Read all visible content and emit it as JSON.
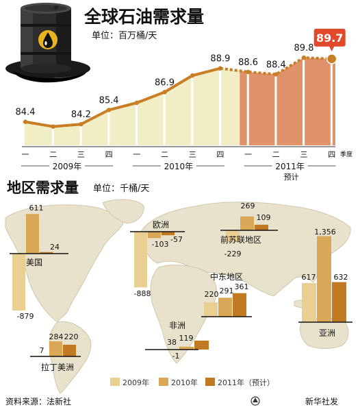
{
  "main_chart": {
    "title": "全球石油需求量",
    "unit": "单位：百万桶/天",
    "quarter_suffix": "季度",
    "years": [
      "2009年",
      "2010年",
      "2011年"
    ],
    "forecast_note": "预计"
  },
  "regional": {
    "title": "地区需求量",
    "unit": "单位：千桶/天"
  },
  "legend": [
    "2009年",
    "2010年",
    "2011年（预计）"
  ],
  "footer": {
    "source": "资料来源：法新社",
    "credit": "新华社发"
  },
  "colors": {
    "c2009": "#e9cf92",
    "c2010": "#d9a756",
    "c2011": "#c17a22",
    "line": "#c97e25",
    "forecast_area": "#e0926b",
    "area": "#f1edc5",
    "map": "#e8e2cc",
    "highlight": "#e0492c"
  },
  "chart_data": [
    {
      "type": "area",
      "title": "全球石油需求量",
      "ylabel": "单位：百万桶/天",
      "categories": [
        "一",
        "二",
        "三",
        "四",
        "一",
        "二",
        "三",
        "四",
        "一",
        "二",
        "三",
        "四"
      ],
      "years": [
        "2009年",
        "2010年",
        "2011年"
      ],
      "values": [
        84.4,
        null,
        84.2,
        85.4,
        null,
        86.9,
        null,
        88.9,
        88.6,
        88.4,
        89.8,
        89.7
      ],
      "point_values": [
        84.4,
        84.0,
        84.2,
        85.4,
        86.0,
        86.9,
        88.3,
        88.9,
        88.6,
        88.4,
        89.8,
        89.7
      ],
      "labeled": [
        true,
        false,
        true,
        true,
        false,
        true,
        false,
        true,
        true,
        true,
        true,
        true
      ],
      "forecast_from_index": 8,
      "highlight_index": 11,
      "ylim": [
        83,
        90.5
      ]
    },
    {
      "type": "bar",
      "title": "地区需求量",
      "ylabel": "单位：千桶/天",
      "series": [
        {
          "name": "2009年"
        },
        {
          "name": "2010年"
        },
        {
          "name": "2011年（预计）"
        }
      ],
      "regions": [
        {
          "name": "美国",
          "values": [
            -879,
            611,
            24
          ]
        },
        {
          "name": "欧洲",
          "values": [
            -888,
            -103,
            -57
          ]
        },
        {
          "name": "前苏联地区",
          "values": [
            -229,
            269,
            109
          ]
        },
        {
          "name": "中东地区",
          "values": [
            220,
            291,
            361
          ]
        },
        {
          "name": "非洲",
          "values": [
            -1,
            38,
            119
          ]
        },
        {
          "name": "亚洲",
          "values": [
            617,
            1356,
            632
          ]
        },
        {
          "name": "拉丁美洲",
          "values": [
            7,
            284,
            220
          ]
        }
      ]
    }
  ]
}
